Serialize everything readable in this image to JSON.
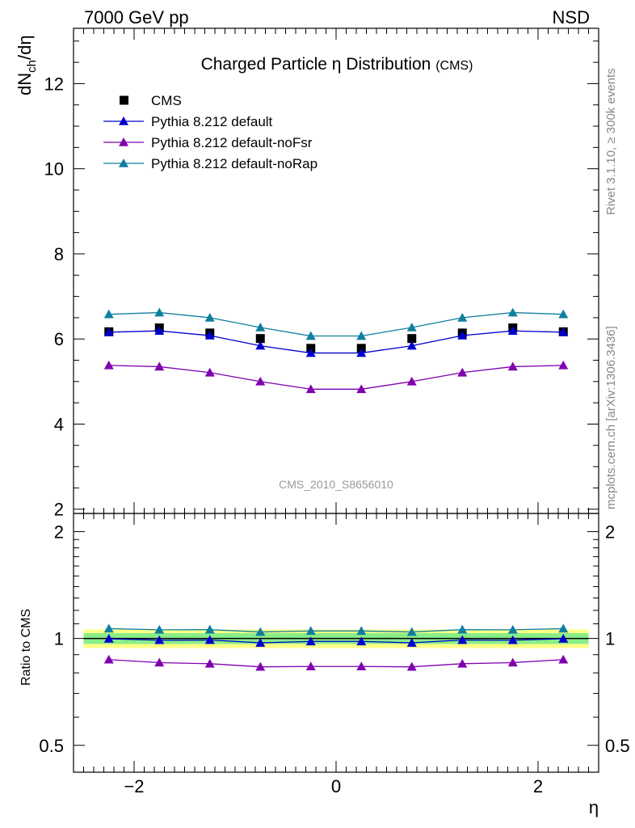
{
  "header": {
    "left": "7000 GeV pp",
    "right": "NSD"
  },
  "side_labels": {
    "rivet": "Rivet 3.1.10, ≥ 300k events",
    "mcplots": "mcplots.cern.ch [arXiv:1306.3436]"
  },
  "chart_data": [
    {
      "type": "scatter",
      "panel": "main",
      "title": "Charged Particle η Distribution",
      "title_suffix": "(CMS)",
      "watermark": "CMS_2010_S8656010",
      "ylabel": "dN_ch/dη",
      "xlabel": "",
      "xlim": [
        -2.6,
        2.6
      ],
      "ylim": [
        1.9,
        13.3
      ],
      "yticks": [
        2,
        4,
        6,
        8,
        10,
        12
      ],
      "x": [
        -2.25,
        -1.75,
        -1.25,
        -0.75,
        -0.25,
        0.25,
        0.75,
        1.25,
        1.75,
        2.25
      ],
      "series": [
        {
          "name": "CMS",
          "marker": "square",
          "color": "#000000",
          "values": [
            6.17,
            6.26,
            6.14,
            6.01,
            5.78,
            5.78,
            6.01,
            6.14,
            6.26,
            6.17
          ]
        },
        {
          "name": "Pythia 8.212 default",
          "marker": "triangle",
          "color": "#0000cc",
          "values": [
            6.16,
            6.19,
            6.08,
            5.84,
            5.67,
            5.67,
            5.84,
            6.08,
            6.19,
            6.16
          ]
        },
        {
          "name": "Pythia 8.212 default-noFsr",
          "marker": "triangle",
          "color": "#8000b0",
          "values": [
            5.38,
            5.35,
            5.21,
            5.0,
            4.82,
            4.82,
            5.0,
            5.21,
            5.35,
            5.38
          ]
        },
        {
          "name": "Pythia 8.212 default-noRap",
          "marker": "triangle",
          "color": "#0f7fa0",
          "values": [
            6.58,
            6.62,
            6.5,
            6.27,
            6.07,
            6.07,
            6.27,
            6.5,
            6.62,
            6.58
          ]
        }
      ],
      "legend_position": "top-left"
    },
    {
      "type": "line",
      "panel": "ratio",
      "ylabel": "Ratio to CMS",
      "xlabel": "η",
      "xlim": [
        -2.6,
        2.6
      ],
      "ylim": [
        0.42,
        2.25
      ],
      "yticks": [
        0.5,
        1,
        2
      ],
      "ytick_labels": [
        "0.5",
        "1",
        "2"
      ],
      "xticks": [
        -2,
        0,
        2
      ],
      "xtick_labels": [
        "−2",
        "0",
        "2"
      ],
      "x": [
        -2.25,
        -1.75,
        -1.25,
        -0.75,
        -0.25,
        0.25,
        0.75,
        1.25,
        1.75,
        2.25
      ],
      "bands": [
        {
          "color": "#ffff88",
          "half_width": 0.06
        },
        {
          "color": "#88ee88",
          "half_width": 0.035
        }
      ],
      "series": [
        {
          "name": "Pythia 8.212 default",
          "color": "#0000cc",
          "values": [
            0.998,
            0.989,
            0.99,
            0.972,
            0.981,
            0.981,
            0.972,
            0.99,
            0.989,
            0.998
          ]
        },
        {
          "name": "Pythia 8.212 default-noFsr",
          "color": "#8000b0",
          "values": [
            0.872,
            0.855,
            0.849,
            0.832,
            0.834,
            0.834,
            0.832,
            0.849,
            0.855,
            0.872
          ]
        },
        {
          "name": "Pythia 8.212 default-noRap",
          "color": "#0f7fa0",
          "values": [
            1.066,
            1.058,
            1.059,
            1.043,
            1.05,
            1.05,
            1.043,
            1.059,
            1.058,
            1.066
          ]
        }
      ]
    }
  ]
}
